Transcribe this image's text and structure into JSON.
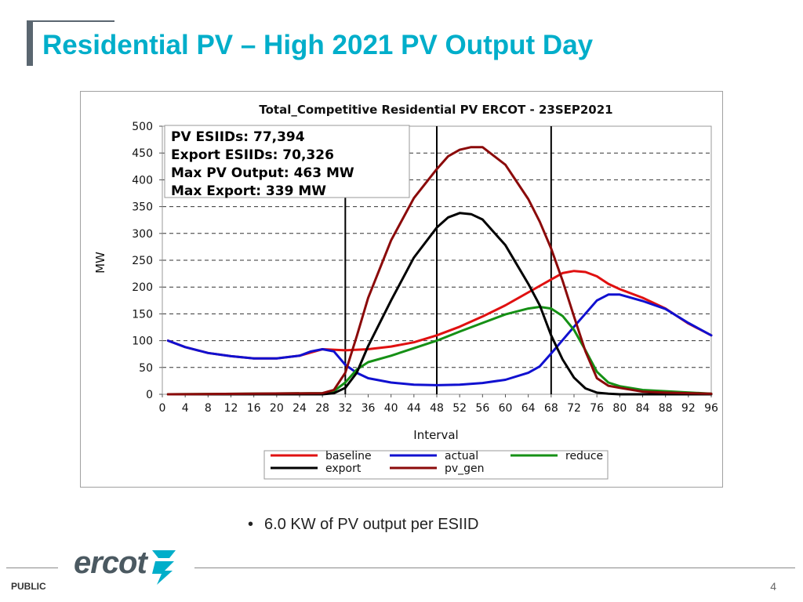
{
  "slide": {
    "title": "Residential PV – High 2021 PV Output Day",
    "bullet": "6.0 KW of PV output per ESIID",
    "footer_label": "PUBLIC",
    "page_number": "4",
    "logo_text": "ercot",
    "accent_color": "#00aeca"
  },
  "chart_data": {
    "type": "line",
    "title": "Total_Competitive Residential PV ERCOT - 23SEP2021",
    "xlabel": "Interval",
    "ylabel": "MW",
    "xlim": [
      0,
      96
    ],
    "ylim": [
      0,
      500
    ],
    "xticks": [
      0,
      4,
      8,
      12,
      16,
      20,
      24,
      28,
      32,
      36,
      40,
      44,
      48,
      52,
      56,
      60,
      64,
      68,
      72,
      76,
      80,
      84,
      88,
      92,
      96
    ],
    "yticks": [
      0,
      50,
      100,
      150,
      200,
      250,
      300,
      350,
      400,
      450,
      500
    ],
    "grid": "horizontal dashed",
    "vertical_markers": [
      32,
      48,
      68
    ],
    "info_box": [
      "PV ESIIDs: 77,394",
      "Export ESIIDs: 70,326",
      "Max PV Output: 463 MW",
      "Max Export: 339 MW"
    ],
    "legend_position": "bottom",
    "series": [
      {
        "name": "baseline",
        "color": "#e01010",
        "x": [
          1,
          4,
          8,
          12,
          16,
          20,
          24,
          28,
          32,
          36,
          40,
          44,
          48,
          52,
          56,
          60,
          64,
          68,
          70,
          72,
          74,
          76,
          78,
          80,
          84,
          88,
          92,
          96
        ],
        "y": [
          100,
          88,
          77,
          71,
          67,
          67,
          72,
          84,
          82,
          84,
          89,
          97,
          110,
          126,
          145,
          166,
          190,
          214,
          226,
          230,
          228,
          220,
          206,
          196,
          180,
          160,
          132,
          110
        ]
      },
      {
        "name": "actual",
        "color": "#1010d0",
        "x": [
          1,
          4,
          8,
          12,
          16,
          20,
          24,
          26,
          28,
          30,
          32,
          34,
          36,
          40,
          44,
          48,
          52,
          56,
          60,
          64,
          66,
          68,
          72,
          76,
          78,
          80,
          84,
          88,
          92,
          96
        ],
        "y": [
          100,
          88,
          77,
          71,
          67,
          67,
          72,
          80,
          84,
          80,
          55,
          40,
          30,
          22,
          18,
          17,
          18,
          21,
          27,
          40,
          52,
          76,
          126,
          175,
          186,
          186,
          174,
          159,
          133,
          110
        ]
      },
      {
        "name": "reduce",
        "color": "#159015",
        "x": [
          1,
          28,
          30,
          32,
          34,
          36,
          40,
          44,
          48,
          52,
          56,
          60,
          64,
          66,
          68,
          70,
          72,
          74,
          76,
          78,
          80,
          84,
          96
        ],
        "y": [
          0,
          2,
          6,
          22,
          46,
          60,
          72,
          86,
          100,
          117,
          133,
          149,
          160,
          163,
          160,
          146,
          120,
          82,
          42,
          22,
          15,
          8,
          1
        ]
      },
      {
        "name": "export",
        "color": "#000000",
        "x": [
          1,
          28,
          30,
          32,
          34,
          36,
          40,
          44,
          48,
          50,
          52,
          54,
          56,
          60,
          64,
          66,
          68,
          70,
          72,
          74,
          76,
          78,
          80,
          84,
          96
        ],
        "y": [
          0,
          0,
          2,
          12,
          40,
          90,
          175,
          255,
          311,
          330,
          338,
          336,
          326,
          278,
          206,
          166,
          110,
          65,
          31,
          11,
          3,
          1,
          0,
          0,
          0
        ]
      },
      {
        "name": "pv_gen",
        "color": "#8b0a0a",
        "x": [
          1,
          28,
          30,
          32,
          34,
          36,
          40,
          44,
          48,
          50,
          52,
          54,
          56,
          60,
          64,
          66,
          68,
          70,
          72,
          74,
          76,
          78,
          80,
          84,
          88,
          92,
          96
        ],
        "y": [
          0,
          2,
          8,
          40,
          108,
          180,
          287,
          366,
          420,
          444,
          456,
          461,
          461,
          428,
          364,
          322,
          272,
          212,
          145,
          80,
          30,
          16,
          12,
          5,
          3,
          2,
          1
        ]
      }
    ]
  }
}
